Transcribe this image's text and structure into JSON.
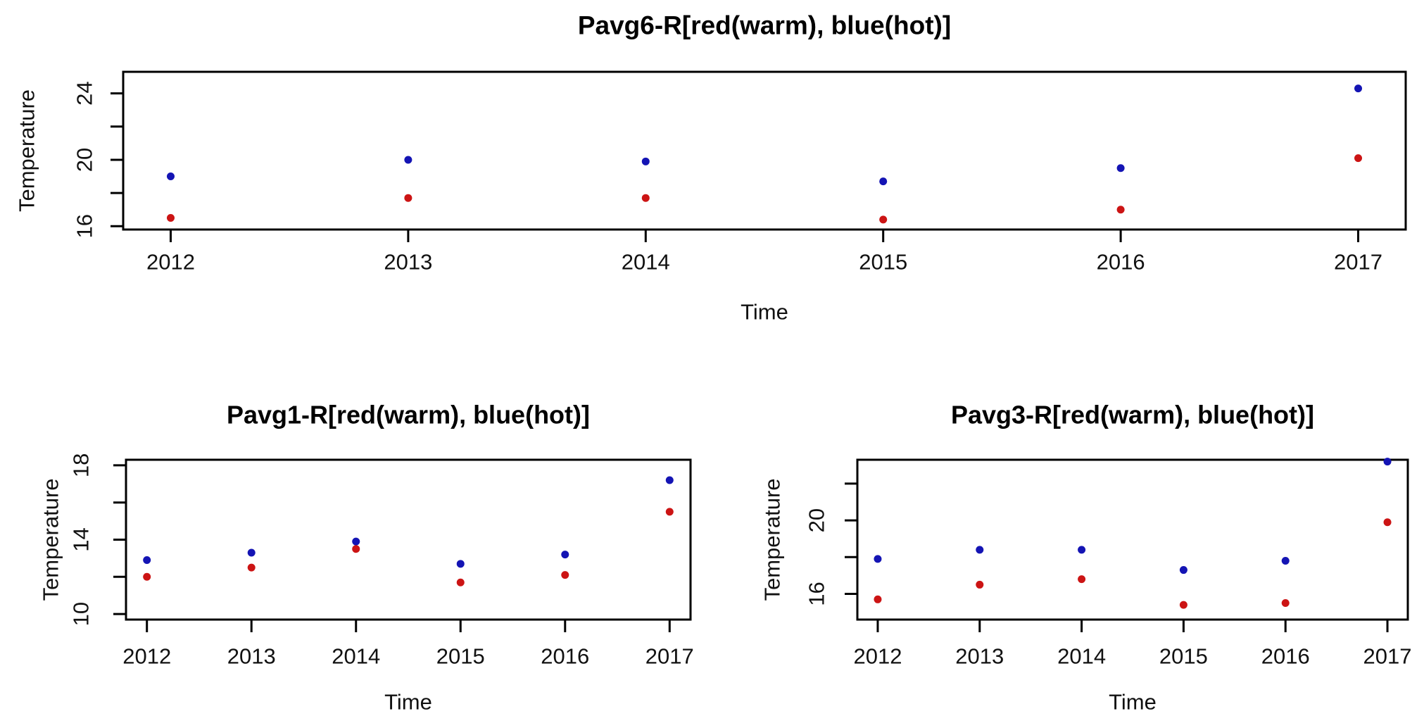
{
  "figure": {
    "background": "#ffffff",
    "description": "Three base-R scatter plots of temperature by year, red=warm, blue=hot"
  },
  "colors": {
    "hot_blue": "#1414b4",
    "warm_red": "#cc1414",
    "axis": "#000000",
    "text": "#111111"
  },
  "chart_data": [
    {
      "id": "pavg6",
      "type": "scatter",
      "title": "Pavg6-R[red(warm), blue(hot)]",
      "xlabel": "Time",
      "ylabel": "Temperature",
      "x": [
        2012,
        2013,
        2014,
        2015,
        2016,
        2017
      ],
      "series": [
        {
          "name": "hot (blue)",
          "color_key": "hot_blue",
          "values": [
            19.0,
            20.0,
            19.9,
            18.7,
            19.5,
            24.3
          ]
        },
        {
          "name": "warm (red)",
          "color_key": "warm_red",
          "values": [
            16.5,
            17.7,
            17.7,
            16.4,
            17.0,
            20.1
          ]
        }
      ],
      "xlim": [
        2011.8,
        2017.2
      ],
      "ylim": [
        15.8,
        25.3
      ],
      "xticks": [
        2012,
        2013,
        2014,
        2015,
        2016,
        2017
      ],
      "xtick_labels": [
        "2012",
        "2013",
        "2014",
        "2015",
        "2016",
        "2017"
      ],
      "yticks": [
        16,
        18,
        20,
        22,
        24
      ],
      "ytick_labels": [
        "16",
        "",
        "20",
        "",
        "24"
      ],
      "grid": false,
      "legend": "none"
    },
    {
      "id": "pavg1",
      "type": "scatter",
      "title": "Pavg1-R[red(warm), blue(hot)]",
      "xlabel": "Time",
      "ylabel": "Temperature",
      "x": [
        2012,
        2013,
        2014,
        2015,
        2016,
        2017
      ],
      "series": [
        {
          "name": "hot (blue)",
          "color_key": "hot_blue",
          "values": [
            12.9,
            13.3,
            13.9,
            12.7,
            13.2,
            17.2
          ]
        },
        {
          "name": "warm (red)",
          "color_key": "warm_red",
          "values": [
            12.0,
            12.5,
            13.5,
            11.7,
            12.1,
            15.5
          ]
        }
      ],
      "xlim": [
        2011.8,
        2017.2
      ],
      "ylim": [
        9.7,
        18.3
      ],
      "xticks": [
        2012,
        2013,
        2014,
        2015,
        2016,
        2017
      ],
      "xtick_labels": [
        "2012",
        "2013",
        "2014",
        "2015",
        "2016",
        "2017"
      ],
      "yticks": [
        10,
        12,
        14,
        16,
        18
      ],
      "ytick_labels": [
        "10",
        "",
        "14",
        "",
        "18"
      ],
      "grid": false,
      "legend": "none"
    },
    {
      "id": "pavg3",
      "type": "scatter",
      "title": "Pavg3-R[red(warm), blue(hot)]",
      "xlabel": "Time",
      "ylabel": "Temperature",
      "x": [
        2012,
        2013,
        2014,
        2015,
        2016,
        2017
      ],
      "series": [
        {
          "name": "hot (blue)",
          "color_key": "hot_blue",
          "values": [
            17.9,
            18.4,
            18.4,
            17.3,
            17.8,
            23.2
          ]
        },
        {
          "name": "warm (red)",
          "color_key": "warm_red",
          "values": [
            15.7,
            16.5,
            16.8,
            15.4,
            15.5,
            19.9
          ]
        }
      ],
      "xlim": [
        2011.8,
        2017.2
      ],
      "ylim": [
        14.6,
        23.3
      ],
      "xticks": [
        2012,
        2013,
        2014,
        2015,
        2016,
        2017
      ],
      "xtick_labels": [
        "2012",
        "2013",
        "2014",
        "2015",
        "2016",
        "2017"
      ],
      "yticks": [
        16,
        18,
        20,
        22
      ],
      "ytick_labels": [
        "16",
        "",
        "20",
        ""
      ],
      "grid": false,
      "legend": "none"
    }
  ]
}
